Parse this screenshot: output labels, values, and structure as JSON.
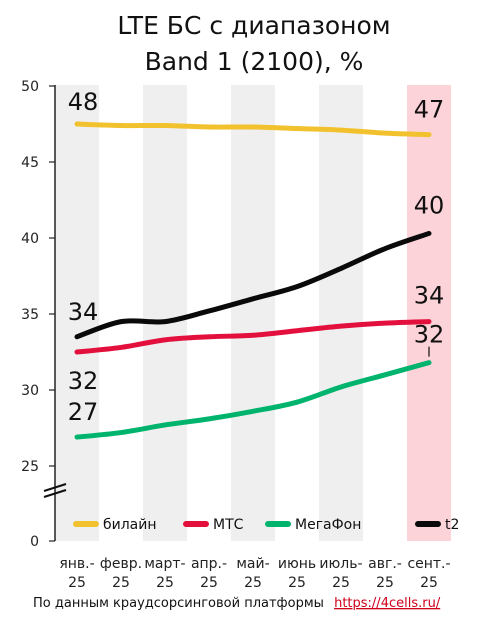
{
  "chart_data": {
    "type": "line",
    "title_line1": "LTE БС с диапазоном",
    "title_line2": "Band 1 (2100), %",
    "categories": [
      [
        "янв.-",
        "25"
      ],
      [
        "февр.",
        "25"
      ],
      [
        "март-",
        "25"
      ],
      [
        "апр.-",
        "25"
      ],
      [
        "май-",
        "25"
      ],
      [
        "июнь",
        "25"
      ],
      [
        "июль-",
        "25"
      ],
      [
        "авг.-",
        "25"
      ],
      [
        "сент.-",
        "25"
      ]
    ],
    "y_ticks": [
      0,
      25,
      30,
      35,
      40,
      45,
      50
    ],
    "y_axis_break": true,
    "ylim": [
      25,
      50
    ],
    "highlighted_category": 8,
    "grid": false,
    "legend_position": "bottom",
    "series": [
      {
        "name": "билайн",
        "color": "#f2c12e",
        "values": [
          47.5,
          47.4,
          47.4,
          47.3,
          47.3,
          47.2,
          47.1,
          46.9,
          46.8
        ],
        "start_label": "48",
        "end_label": "47"
      },
      {
        "name": "МТС",
        "color": "#e30f3c",
        "values": [
          32.5,
          32.8,
          33.3,
          33.5,
          33.6,
          33.9,
          34.2,
          34.4,
          34.5
        ],
        "start_label": "32",
        "end_label": "34"
      },
      {
        "name": "МегаФон",
        "color": "#00b46e",
        "values": [
          26.9,
          27.2,
          27.7,
          28.1,
          28.6,
          29.2,
          30.2,
          31.0,
          31.8
        ],
        "start_label": "27",
        "end_label": "32"
      },
      {
        "name": "t2",
        "color": "#0a0a0a",
        "values": [
          33.5,
          34.5,
          34.5,
          35.2,
          36.0,
          36.8,
          38.0,
          39.3,
          40.3
        ],
        "start_label": "34",
        "end_label": "40"
      }
    ]
  },
  "source": {
    "text": "По данным краудсорсинговой платформы",
    "link": "https://4cells.ru/"
  }
}
